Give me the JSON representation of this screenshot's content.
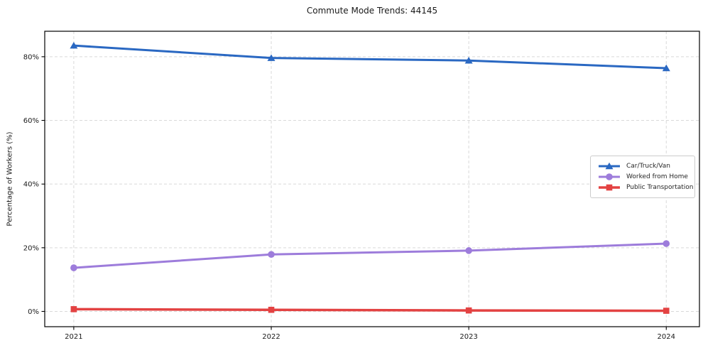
{
  "window": {
    "background": "#ffffff"
  },
  "chart_data": {
    "type": "line",
    "title": "Commute Mode Trends: 44145",
    "xlabel": "",
    "ylabel": "Percentage of Workers (%)",
    "x": [
      2021,
      2022,
      2023,
      2024
    ],
    "x_tick_labels": [
      "2021",
      "2022",
      "2023",
      "2024"
    ],
    "y_ticks": [
      0,
      20,
      40,
      60,
      80
    ],
    "y_tick_labels": [
      "0%",
      "20%",
      "40%",
      "60%",
      "80%"
    ],
    "xlim": [
      2020.853,
      2024.168
    ],
    "ylim": [
      -4.8,
      88
    ],
    "grid": true,
    "grid_style": "dashed",
    "legend_position": "center-right",
    "series": [
      {
        "name": "Car/Truck/Van",
        "color": "#2a68c2",
        "marker": "triangle",
        "line_width": 3,
        "values": [
          83.5,
          79.6,
          78.8,
          76.4
        ]
      },
      {
        "name": "Worked from Home",
        "color": "#9d7cdb",
        "marker": "circle",
        "line_width": 3,
        "values": [
          13.7,
          17.9,
          19.1,
          21.3
        ]
      },
      {
        "name": "Public Transportation",
        "color": "#e34242",
        "marker": "square",
        "line_width": 3.5,
        "values": [
          0.7,
          0.5,
          0.3,
          0.2
        ]
      }
    ]
  },
  "colors": {
    "grid": "#d9d9d9",
    "spine": "#000000",
    "tick": "#000000",
    "text": "#1a1a1a",
    "legend_border": "#cccccc"
  }
}
